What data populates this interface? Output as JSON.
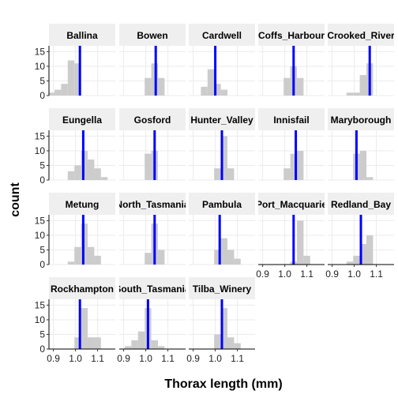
{
  "chart_data": {
    "type": "bar",
    "chart_kind": "faceted-histogram",
    "xlabel": "Thorax length (mm)",
    "ylabel": "count",
    "xlim": [
      0.88,
      1.18
    ],
    "ylim": [
      0,
      17
    ],
    "x_ticks": [
      0.9,
      1.0,
      1.1
    ],
    "x_tick_labels": [
      "0.9",
      "1.0",
      "1.1"
    ],
    "y_ticks": [
      0,
      5,
      10,
      15
    ],
    "y_tick_labels": [
      "0",
      "5",
      "10",
      "15"
    ],
    "bin_edges": [
      0.875,
      0.905,
      0.935,
      0.965,
      0.995,
      1.025,
      1.055,
      1.085,
      1.115,
      1.145
    ],
    "grid": true,
    "colors": {
      "bars": "#cccccc",
      "mean_line": "#0000ff",
      "strip": "#efefef",
      "grid": "#ebebeb"
    },
    "facets": [
      {
        "label": "Ballina",
        "counts": [
          1,
          2,
          4,
          12,
          11,
          0,
          0,
          0,
          0
        ],
        "mean": 1.02
      },
      {
        "label": "Bowen",
        "counts": [
          0,
          0,
          0,
          0,
          6,
          11,
          6,
          0,
          0
        ],
        "mean": 1.045
      },
      {
        "label": "Cardwell",
        "counts": [
          0,
          0,
          3,
          9,
          4,
          2,
          0,
          0,
          0
        ],
        "mean": 1.0
      },
      {
        "label": "Coffs_Harbour",
        "counts": [
          0,
          0,
          0,
          0,
          6,
          10,
          6,
          0,
          0
        ],
        "mean": 1.04
      },
      {
        "label": "Crooked_River",
        "counts": [
          0,
          0,
          0,
          1,
          1,
          7,
          11,
          0,
          0
        ],
        "mean": 1.07
      },
      {
        "label": "Eungella",
        "counts": [
          0,
          0,
          0,
          3,
          5,
          10,
          7,
          4,
          1
        ],
        "mean": 1.035
      },
      {
        "label": "Gosford",
        "counts": [
          0,
          0,
          0,
          0,
          9,
          10,
          0,
          0,
          0
        ],
        "mean": 1.04
      },
      {
        "label": "Hunter_Valley",
        "counts": [
          0,
          0,
          0,
          0,
          4,
          15,
          4,
          0,
          0
        ],
        "mean": 1.03
      },
      {
        "label": "Innisfail",
        "counts": [
          0,
          0,
          0,
          0,
          4,
          9,
          10,
          0,
          0
        ],
        "mean": 1.05
      },
      {
        "label": "Maryborough",
        "counts": [
          0,
          0,
          0,
          0,
          9,
          10,
          1,
          0,
          0
        ],
        "mean": 1.01
      },
      {
        "label": "Metung",
        "counts": [
          0,
          0,
          0,
          1,
          6,
          14,
          6,
          3,
          0
        ],
        "mean": 1.035
      },
      {
        "label": "North_Tasmania",
        "counts": [
          0,
          0,
          0,
          0,
          4,
          14,
          5,
          0,
          0
        ],
        "mean": 1.04
      },
      {
        "label": "Pambula",
        "counts": [
          0,
          0,
          0,
          0,
          5,
          9,
          5,
          2,
          0
        ],
        "mean": 1.02
      },
      {
        "label": "Port_Macquarie",
        "counts": [
          0,
          0,
          0,
          0,
          0,
          1,
          15,
          3,
          0
        ],
        "mean": 1.04
      },
      {
        "label": "Redland_Bay",
        "counts": [
          0,
          0,
          0,
          1,
          3,
          7,
          10,
          0,
          0
        ],
        "mean": 1.03
      },
      {
        "label": "Rockhampton",
        "counts": [
          0,
          0,
          0,
          0,
          4,
          14,
          4,
          4,
          0
        ],
        "mean": 1.02
      },
      {
        "label": "South_Tasmania",
        "counts": [
          0,
          1,
          3,
          6,
          14,
          3,
          1,
          0,
          0
        ],
        "mean": 1.01
      },
      {
        "label": "Tilba_Winery",
        "counts": [
          0,
          0,
          0,
          0,
          5,
          14,
          4,
          2,
          0
        ],
        "mean": 1.03
      }
    ]
  }
}
